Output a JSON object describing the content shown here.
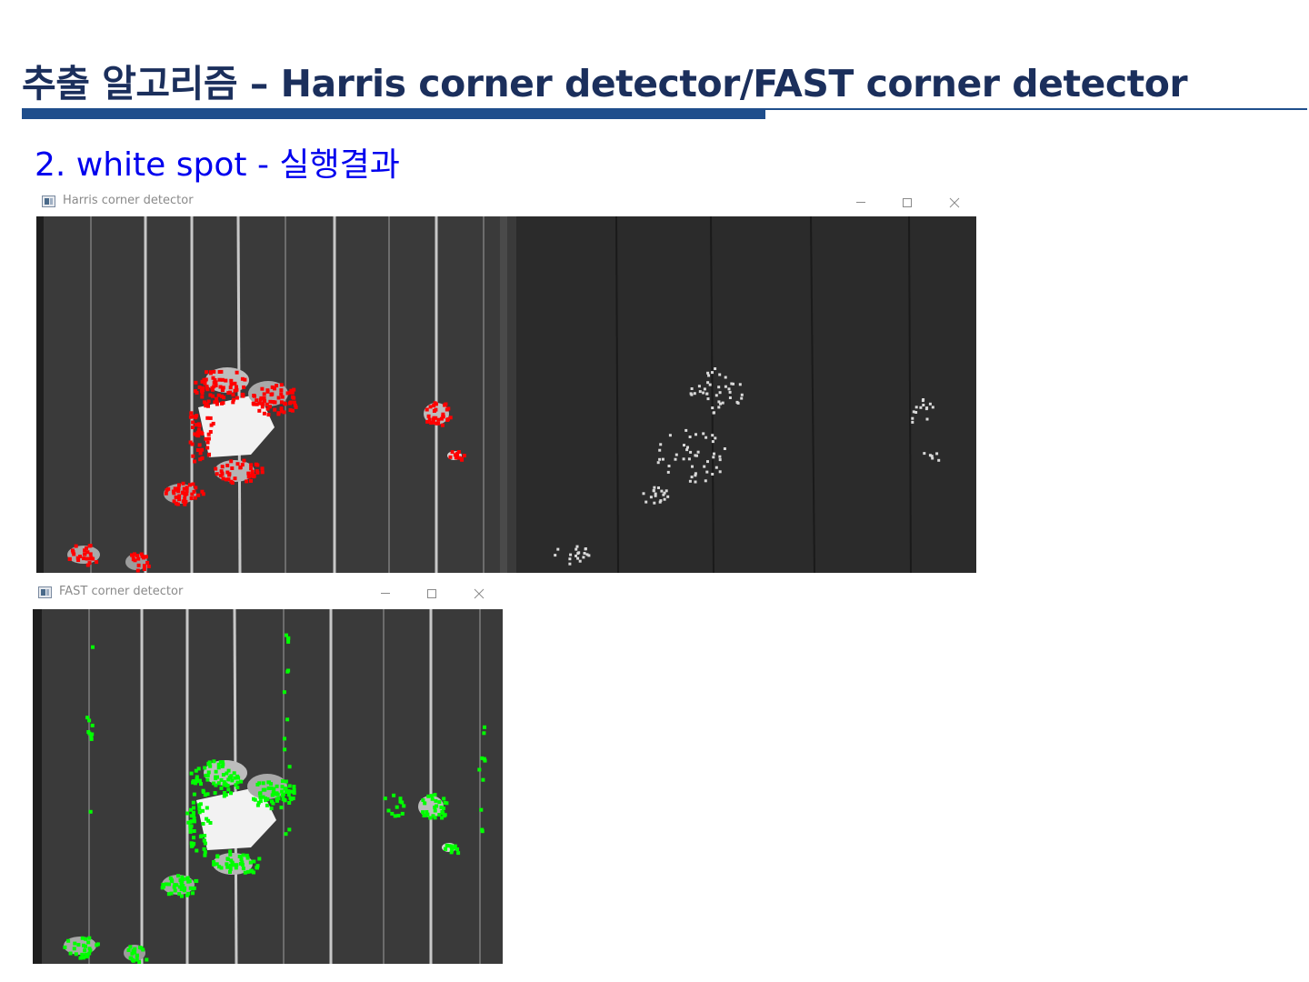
{
  "slide": {
    "title": "추출 알고리즘 – Harris corner detector/FAST corner detector",
    "section_heading": "2. white spot - 실행결과"
  },
  "windows": [
    {
      "id": "harris",
      "title": "Harris corner detector",
      "icon": "opencv-window-icon",
      "controls": [
        "minimize-icon",
        "maximize-icon",
        "close-icon"
      ],
      "marker_color": "#ff0000"
    },
    {
      "id": "fast",
      "title": "FAST corner detector",
      "icon": "opencv-window-icon",
      "controls": [
        "minimize-icon",
        "maximize-icon",
        "close-icon"
      ],
      "marker_color": "#00ff00"
    }
  ],
  "colors": {
    "title_text": "#1b2f5c",
    "heading_text": "#0000ee",
    "rule": "#1f4e8c",
    "image_background": "#262626",
    "stripe": "#cfcfcf",
    "white_spot": "#f2f2f2"
  }
}
